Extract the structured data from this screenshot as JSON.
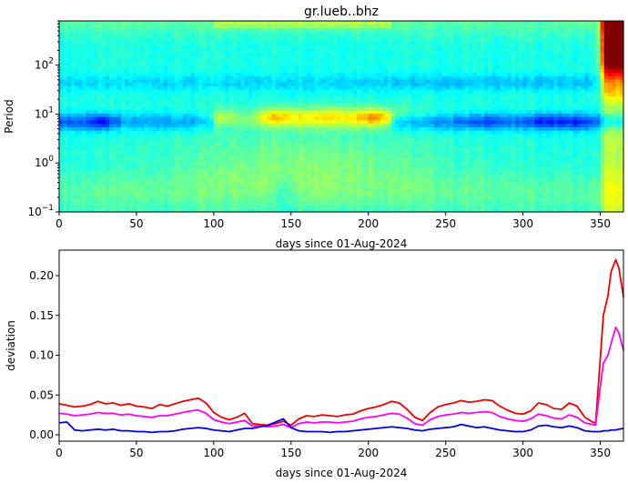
{
  "chart_data": [
    {
      "type": "heatmap",
      "title": "gr.lueb..bhz",
      "xlabel": "days since 01-Aug-2024",
      "ylabel": "Period",
      "xlim": [
        0,
        365
      ],
      "ylim": [
        0.1,
        800
      ],
      "yscale": "log",
      "xticks": [
        0,
        50,
        100,
        150,
        200,
        250,
        300,
        350
      ],
      "yticks": [
        {
          "value": 0.1,
          "base": "10",
          "exp": "−1"
        },
        {
          "value": 1,
          "base": "10",
          "exp": "0"
        },
        {
          "value": 10,
          "base": "10",
          "exp": "1"
        },
        {
          "value": 100,
          "base": "10",
          "exp": "2"
        }
      ],
      "colormap": "jet",
      "grid": false
    },
    {
      "type": "line",
      "xlabel": "days since 01-Aug-2024",
      "ylabel": "deviation",
      "xlim": [
        0,
        365
      ],
      "ylim": [
        -0.008,
        0.232
      ],
      "xticks": [
        0,
        50,
        100,
        150,
        200,
        250,
        300,
        350
      ],
      "yticks": [
        {
          "value": 0.0,
          "label": "0.00"
        },
        {
          "value": 0.05,
          "label": "0.05"
        },
        {
          "value": 0.1,
          "label": "0.10"
        },
        {
          "value": 0.15,
          "label": "0.15"
        },
        {
          "value": 0.2,
          "label": "0.20"
        }
      ],
      "grid": false,
      "series": [
        {
          "color": "#ee0000",
          "x": [
            0,
            5,
            10,
            15,
            20,
            25,
            30,
            35,
            40,
            45,
            50,
            55,
            60,
            65,
            70,
            75,
            80,
            85,
            90,
            95,
            100,
            105,
            110,
            115,
            120,
            125,
            130,
            135,
            140,
            145,
            150,
            155,
            160,
            165,
            170,
            175,
            180,
            185,
            190,
            195,
            200,
            205,
            210,
            215,
            220,
            225,
            230,
            235,
            240,
            245,
            250,
            255,
            260,
            265,
            270,
            275,
            280,
            285,
            290,
            295,
            300,
            305,
            310,
            315,
            320,
            325,
            330,
            335,
            340,
            345,
            347,
            350,
            352,
            355,
            357,
            360,
            362,
            365
          ],
          "y": [
            0.039,
            0.037,
            0.035,
            0.036,
            0.038,
            0.042,
            0.039,
            0.04,
            0.037,
            0.039,
            0.036,
            0.035,
            0.033,
            0.038,
            0.036,
            0.039,
            0.042,
            0.044,
            0.046,
            0.04,
            0.028,
            0.022,
            0.019,
            0.022,
            0.027,
            0.014,
            0.013,
            0.012,
            0.014,
            0.017,
            0.012,
            0.02,
            0.024,
            0.023,
            0.025,
            0.024,
            0.023,
            0.025,
            0.026,
            0.03,
            0.033,
            0.035,
            0.038,
            0.042,
            0.04,
            0.032,
            0.022,
            0.018,
            0.028,
            0.035,
            0.038,
            0.04,
            0.043,
            0.041,
            0.042,
            0.044,
            0.043,
            0.036,
            0.031,
            0.027,
            0.026,
            0.03,
            0.04,
            0.038,
            0.033,
            0.032,
            0.04,
            0.036,
            0.022,
            0.016,
            0.015,
            0.095,
            0.15,
            0.175,
            0.205,
            0.22,
            0.21,
            0.173
          ]
        },
        {
          "color": "#ff00ff",
          "x": [
            0,
            5,
            10,
            15,
            20,
            25,
            30,
            35,
            40,
            45,
            50,
            55,
            60,
            65,
            70,
            75,
            80,
            85,
            90,
            95,
            100,
            105,
            110,
            115,
            120,
            125,
            130,
            135,
            140,
            145,
            150,
            155,
            160,
            165,
            170,
            175,
            180,
            185,
            190,
            195,
            200,
            205,
            210,
            215,
            220,
            225,
            230,
            235,
            240,
            245,
            250,
            255,
            260,
            265,
            270,
            275,
            280,
            285,
            290,
            295,
            300,
            305,
            310,
            315,
            320,
            325,
            330,
            335,
            340,
            345,
            347,
            350,
            352,
            355,
            357,
            360,
            362,
            365
          ],
          "y": [
            0.027,
            0.026,
            0.024,
            0.025,
            0.026,
            0.028,
            0.027,
            0.027,
            0.025,
            0.026,
            0.024,
            0.023,
            0.022,
            0.024,
            0.024,
            0.026,
            0.028,
            0.03,
            0.031,
            0.027,
            0.019,
            0.016,
            0.014,
            0.016,
            0.018,
            0.011,
            0.011,
            0.01,
            0.011,
            0.013,
            0.009,
            0.014,
            0.016,
            0.015,
            0.016,
            0.016,
            0.015,
            0.016,
            0.017,
            0.02,
            0.022,
            0.023,
            0.025,
            0.027,
            0.026,
            0.021,
            0.014,
            0.012,
            0.019,
            0.023,
            0.025,
            0.026,
            0.028,
            0.027,
            0.028,
            0.029,
            0.028,
            0.023,
            0.02,
            0.018,
            0.017,
            0.02,
            0.026,
            0.024,
            0.021,
            0.02,
            0.025,
            0.022,
            0.015,
            0.013,
            0.012,
            0.06,
            0.09,
            0.1,
            0.115,
            0.135,
            0.128,
            0.106
          ]
        },
        {
          "color": "#0000dd",
          "x": [
            0,
            5,
            10,
            15,
            20,
            25,
            30,
            35,
            40,
            45,
            50,
            55,
            60,
            65,
            70,
            75,
            80,
            85,
            90,
            95,
            100,
            105,
            110,
            115,
            120,
            125,
            130,
            135,
            140,
            145,
            150,
            155,
            160,
            165,
            170,
            175,
            180,
            185,
            190,
            195,
            200,
            205,
            210,
            215,
            220,
            225,
            230,
            235,
            240,
            245,
            250,
            255,
            260,
            265,
            270,
            275,
            280,
            285,
            290,
            295,
            300,
            305,
            310,
            315,
            320,
            325,
            330,
            335,
            340,
            345,
            347,
            350,
            352,
            355,
            357,
            360,
            362,
            365
          ],
          "y": [
            0.015,
            0.016,
            0.006,
            0.005,
            0.006,
            0.007,
            0.006,
            0.007,
            0.005,
            0.005,
            0.004,
            0.004,
            0.003,
            0.004,
            0.004,
            0.005,
            0.007,
            0.008,
            0.009,
            0.008,
            0.006,
            0.005,
            0.004,
            0.006,
            0.008,
            0.008,
            0.01,
            0.012,
            0.016,
            0.02,
            0.009,
            0.005,
            0.004,
            0.004,
            0.004,
            0.003,
            0.004,
            0.004,
            0.005,
            0.006,
            0.007,
            0.008,
            0.009,
            0.01,
            0.009,
            0.008,
            0.006,
            0.005,
            0.007,
            0.008,
            0.009,
            0.01,
            0.013,
            0.011,
            0.009,
            0.01,
            0.008,
            0.006,
            0.005,
            0.004,
            0.004,
            0.006,
            0.011,
            0.012,
            0.01,
            0.009,
            0.011,
            0.009,
            0.005,
            0.004,
            0.004,
            0.004,
            0.005,
            0.005,
            0.006,
            0.006,
            0.007,
            0.008
          ]
        }
      ]
    }
  ]
}
